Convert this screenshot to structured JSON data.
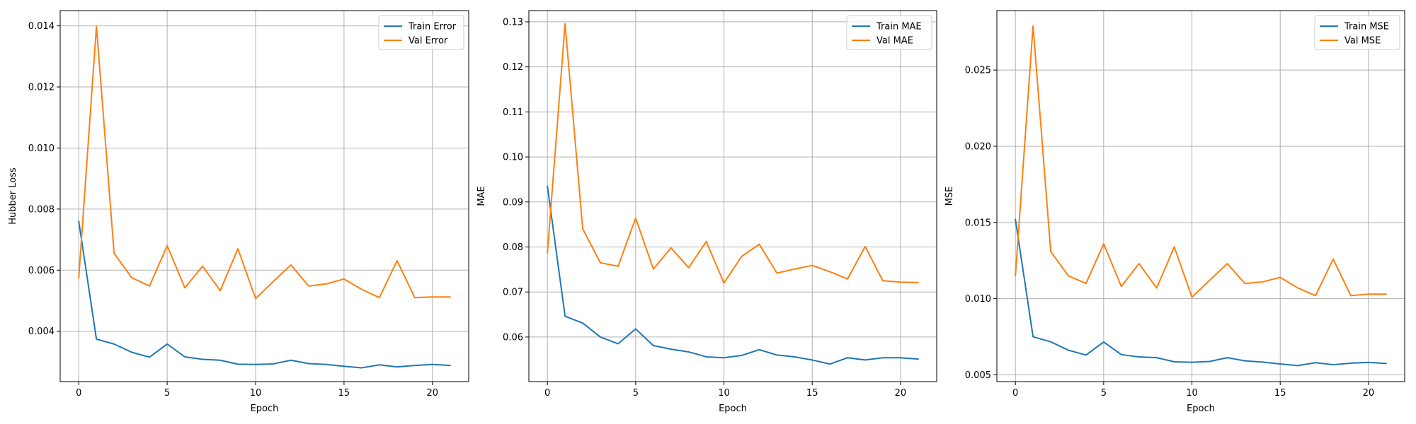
{
  "chart_data": [
    {
      "type": "line",
      "xlabel": "Epoch",
      "ylabel": "Hubber Loss",
      "xlim": [
        -1.05,
        22.05
      ],
      "ylim": [
        0.00235,
        0.0145
      ],
      "xticks": [
        0,
        5,
        10,
        15,
        20
      ],
      "xtick_labels": [
        "0",
        "5",
        "10",
        "15",
        "20"
      ],
      "yticks": [
        0.004,
        0.006,
        0.008,
        0.01,
        0.012,
        0.014
      ],
      "ytick_labels": [
        "0.004",
        "0.006",
        "0.008",
        "0.010",
        "0.012",
        "0.014"
      ],
      "grid": true,
      "legend_position": "top-right",
      "series": [
        {
          "name": "Train Error",
          "color": "#1f77b4",
          "x": [
            0,
            1,
            2,
            3,
            4,
            5,
            6,
            7,
            8,
            9,
            10,
            11,
            12,
            13,
            14,
            15,
            16,
            17,
            18,
            19,
            20,
            21
          ],
          "y": [
            0.0076,
            0.00374,
            0.00358,
            0.00331,
            0.00315,
            0.00358,
            0.00316,
            0.00308,
            0.00305,
            0.00292,
            0.00291,
            0.00293,
            0.00305,
            0.00294,
            0.00291,
            0.00285,
            0.0028,
            0.0029,
            0.00283,
            0.00288,
            0.00291,
            0.00288
          ]
        },
        {
          "name": "Val Error",
          "color": "#ff7f0e",
          "x": [
            0,
            1,
            2,
            3,
            4,
            5,
            6,
            7,
            8,
            9,
            10,
            11,
            12,
            13,
            14,
            15,
            16,
            17,
            18,
            19,
            20,
            21
          ],
          "y": [
            0.00575,
            0.01398,
            0.00655,
            0.00575,
            0.00548,
            0.0068,
            0.00542,
            0.00613,
            0.00533,
            0.0067,
            0.00507,
            0.00563,
            0.00617,
            0.00548,
            0.00555,
            0.00571,
            0.00537,
            0.0051,
            0.00631,
            0.0051,
            0.00512,
            0.00512
          ]
        }
      ]
    },
    {
      "type": "line",
      "xlabel": "Epoch",
      "ylabel": "MAE",
      "xlim": [
        -1.05,
        22.05
      ],
      "ylim": [
        0.0501,
        0.1325
      ],
      "xticks": [
        0,
        5,
        10,
        15,
        20
      ],
      "xtick_labels": [
        "0",
        "5",
        "10",
        "15",
        "20"
      ],
      "yticks": [
        0.06,
        0.07,
        0.08,
        0.09,
        0.1,
        0.11,
        0.12,
        0.13
      ],
      "ytick_labels": [
        "0.06",
        "0.07",
        "0.08",
        "0.09",
        "0.10",
        "0.11",
        "0.12",
        "0.13"
      ],
      "grid": true,
      "legend_position": "top-right",
      "series": [
        {
          "name": "Train MAE",
          "color": "#1f77b4",
          "x": [
            0,
            1,
            2,
            3,
            4,
            5,
            6,
            7,
            8,
            9,
            10,
            11,
            12,
            13,
            14,
            15,
            16,
            17,
            18,
            19,
            20,
            21
          ],
          "y": [
            0.0935,
            0.0646,
            0.0631,
            0.06,
            0.0585,
            0.0618,
            0.0581,
            0.0573,
            0.0567,
            0.0556,
            0.0554,
            0.0559,
            0.0572,
            0.056,
            0.0556,
            0.0549,
            0.054,
            0.0554,
            0.0549,
            0.0554,
            0.0554,
            0.0551
          ]
        },
        {
          "name": "Val MAE",
          "color": "#ff7f0e",
          "x": [
            0,
            1,
            2,
            3,
            4,
            5,
            6,
            7,
            8,
            9,
            10,
            11,
            12,
            13,
            14,
            15,
            16,
            17,
            18,
            19,
            20,
            21
          ],
          "y": [
            0.0787,
            0.1296,
            0.084,
            0.0765,
            0.0757,
            0.0864,
            0.0751,
            0.0798,
            0.0754,
            0.0812,
            0.072,
            0.0779,
            0.0806,
            0.0742,
            0.0751,
            0.0759,
            0.0745,
            0.0729,
            0.0801,
            0.0725,
            0.0722,
            0.0721
          ]
        }
      ]
    },
    {
      "type": "line",
      "xlabel": "Epoch",
      "ylabel": "MSE",
      "xlim": [
        -1.05,
        22.05
      ],
      "ylim": [
        0.00456,
        0.0289
      ],
      "xticks": [
        0,
        5,
        10,
        15,
        20
      ],
      "xtick_labels": [
        "0",
        "5",
        "10",
        "15",
        "20"
      ],
      "yticks": [
        0.005,
        0.01,
        0.015,
        0.02,
        0.025
      ],
      "ytick_labels": [
        "0.005",
        "0.010",
        "0.015",
        "0.020",
        "0.025"
      ],
      "grid": true,
      "legend_position": "top-right",
      "series": [
        {
          "name": "Train MSE",
          "color": "#1f77b4",
          "x": [
            0,
            1,
            2,
            3,
            4,
            5,
            6,
            7,
            8,
            9,
            10,
            11,
            12,
            13,
            14,
            15,
            16,
            17,
            18,
            19,
            20,
            21
          ],
          "y": [
            0.0152,
            0.0075,
            0.00717,
            0.00662,
            0.0063,
            0.00716,
            0.00633,
            0.00618,
            0.00613,
            0.00586,
            0.00583,
            0.00588,
            0.00613,
            0.00592,
            0.00584,
            0.00572,
            0.00561,
            0.0058,
            0.00567,
            0.00577,
            0.00582,
            0.00575
          ]
        },
        {
          "name": "Val MSE",
          "color": "#ff7f0e",
          "x": [
            0,
            1,
            2,
            3,
            4,
            5,
            6,
            7,
            8,
            9,
            10,
            11,
            12,
            13,
            14,
            15,
            16,
            17,
            18,
            19,
            20,
            21
          ],
          "y": [
            0.0115,
            0.0279,
            0.0131,
            0.0115,
            0.011,
            0.0136,
            0.0108,
            0.0123,
            0.0107,
            0.0134,
            0.0101,
            0.0112,
            0.0123,
            0.011,
            0.0111,
            0.0114,
            0.0107,
            0.0102,
            0.0126,
            0.0102,
            0.0103,
            0.0103
          ]
        }
      ]
    }
  ]
}
